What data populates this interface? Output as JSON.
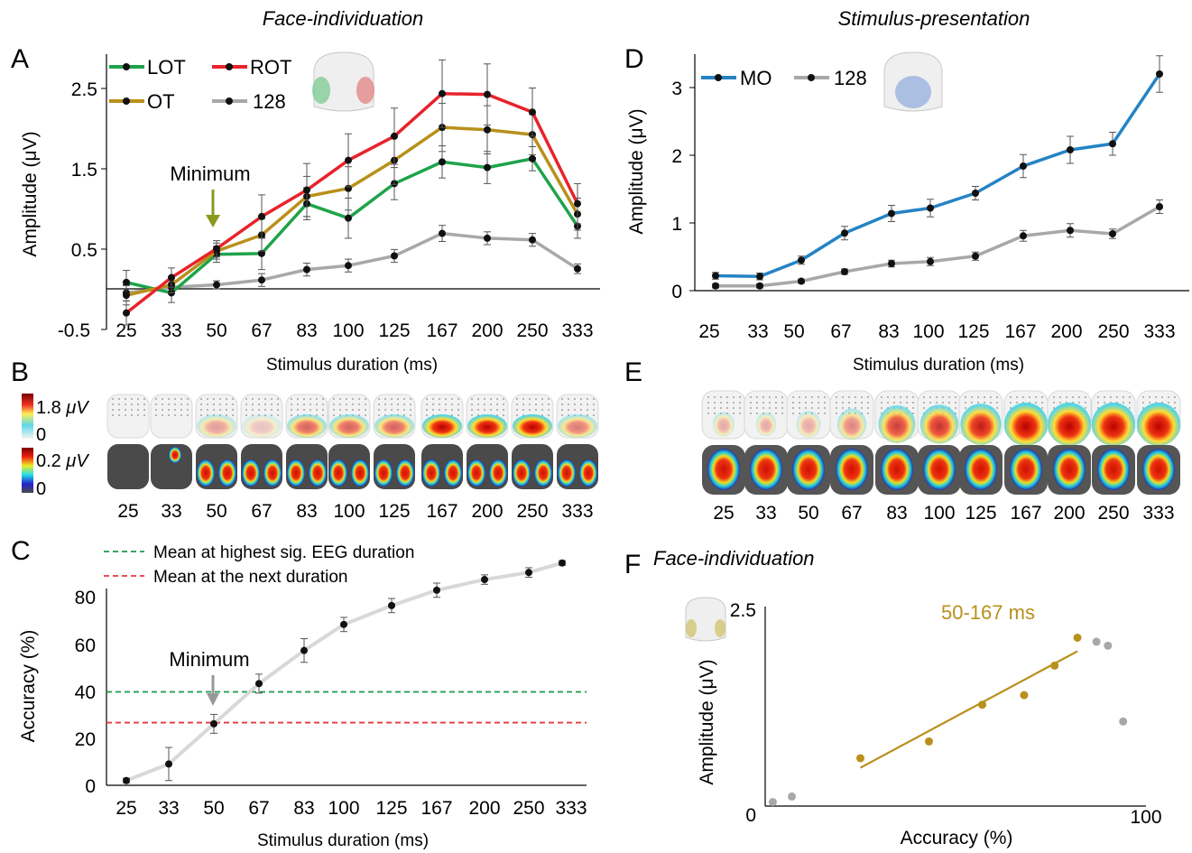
{
  "headings": {
    "left": "Face-individuation",
    "right": "Stimulus-presentation",
    "f_title": "Face-individuation"
  },
  "panel_letters": [
    "A",
    "B",
    "C",
    "D",
    "E",
    "F"
  ],
  "duration_labels": [
    "25",
    "33",
    "50",
    "67",
    "83",
    "100",
    "125",
    "167",
    "200",
    "250",
    "333"
  ],
  "colors": {
    "LOT": "#1fa34a",
    "ROT": "#e8232a",
    "OT": "#b8901b",
    "128": "#a8a8a8",
    "MO": "#2583c4",
    "green_line": "#1a9a4a",
    "red_line": "#e8383e",
    "accuracy_line": "#d8d8d8",
    "regression": "#b8901b",
    "f_gray": "#a8a8a8"
  },
  "colorbars": {
    "top": {
      "max": "1.8",
      "unit": "μV",
      "min": "0"
    },
    "bottom": {
      "max": "0.2",
      "unit": "μV",
      "min": "0"
    }
  },
  "chart_data": [
    {
      "panel": "A",
      "type": "line",
      "xlabel": "Stimulus duration (ms)",
      "ylabel": "Amplitude (μV)",
      "categories": [
        "25",
        "33",
        "50",
        "67",
        "83",
        "100",
        "125",
        "167",
        "200",
        "250",
        "333"
      ],
      "yticks": [
        "2.5",
        "1.5",
        "0.5",
        "-0.5"
      ],
      "ylim": [
        -0.5,
        2.8
      ],
      "annotation": "Minimum",
      "annotation_at": "50",
      "series": [
        {
          "name": "LOT",
          "values": [
            0.08,
            -0.05,
            0.43,
            0.44,
            1.06,
            0.88,
            1.31,
            1.58,
            1.51,
            1.62,
            0.78
          ],
          "errors": [
            0.15,
            0.12,
            0.1,
            0.2,
            0.2,
            0.25,
            0.2,
            0.2,
            0.2,
            0.15,
            0.15
          ]
        },
        {
          "name": "ROT",
          "values": [
            -0.3,
            0.14,
            0.5,
            0.9,
            1.23,
            1.6,
            1.9,
            2.43,
            2.42,
            2.2,
            1.06
          ],
          "errors": [
            0.15,
            0.12,
            0.1,
            0.27,
            0.33,
            0.33,
            0.35,
            0.42,
            0.38,
            0.3,
            0.25
          ]
        },
        {
          "name": "OT",
          "values": [
            -0.08,
            0.05,
            0.47,
            0.67,
            1.15,
            1.25,
            1.6,
            2.01,
            1.98,
            1.92,
            0.93
          ],
          "errors": [
            0.12,
            0.1,
            0.1,
            0.2,
            0.25,
            0.27,
            0.3,
            0.3,
            0.3,
            0.25,
            0.2
          ]
        },
        {
          "name": "128",
          "values": [
            -0.05,
            0.02,
            0.05,
            0.11,
            0.24,
            0.29,
            0.41,
            0.69,
            0.63,
            0.61,
            0.25
          ],
          "errors": [
            0.1,
            0.08,
            0.05,
            0.08,
            0.08,
            0.08,
            0.08,
            0.1,
            0.08,
            0.08,
            0.06
          ]
        }
      ]
    },
    {
      "panel": "C",
      "type": "line",
      "xlabel": "Stimulus duration (ms)",
      "ylabel": "Accuracy (%)",
      "categories": [
        "25",
        "33",
        "50",
        "67",
        "83",
        "100",
        "125",
        "167",
        "200",
        "250",
        "333"
      ],
      "yticks": [
        "80",
        "60",
        "40",
        "20",
        "0"
      ],
      "ylim": [
        0,
        84
      ],
      "values": [
        2,
        9,
        26,
        43,
        57,
        68,
        76,
        82.5,
        87,
        90,
        94
      ],
      "errors": [
        1,
        7,
        4,
        4,
        5,
        3,
        3,
        3,
        2,
        2,
        1
      ],
      "annotation": "Minimum",
      "annotation_at": "50",
      "reference_lines": [
        {
          "label": "Mean at highest sig. EEG duration",
          "value": 39.5
        },
        {
          "label": "Mean at the next duration",
          "value": 26.5
        }
      ]
    },
    {
      "panel": "D",
      "type": "line",
      "xlabel": "Stimulus duration (ms)",
      "ylabel": "Amplitude (μV)",
      "categories": [
        "25",
        "33",
        "50",
        "67",
        "83",
        "100",
        "125",
        "167",
        "200",
        "250",
        "333"
      ],
      "yticks": [
        "3",
        "2",
        "1",
        "0"
      ],
      "ylim": [
        0,
        3.3
      ],
      "series": [
        {
          "name": "MO",
          "values": [
            0.22,
            0.21,
            0.45,
            0.85,
            1.14,
            1.22,
            1.44,
            1.84,
            2.08,
            2.17,
            3.2
          ],
          "errors": [
            0.05,
            0.05,
            0.06,
            0.1,
            0.12,
            0.13,
            0.1,
            0.17,
            0.2,
            0.17,
            0.27
          ]
        },
        {
          "name": "128",
          "values": [
            0.07,
            0.07,
            0.14,
            0.28,
            0.4,
            0.43,
            0.51,
            0.81,
            0.89,
            0.84,
            1.24
          ],
          "errors": [
            0.03,
            0.03,
            0.03,
            0.04,
            0.05,
            0.06,
            0.06,
            0.08,
            0.1,
            0.07,
            0.1
          ]
        }
      ]
    },
    {
      "panel": "F",
      "type": "scatter",
      "xlabel": "Accuracy (%)",
      "ylabel": "Amplitude (μV)",
      "xlim": [
        0,
        100
      ],
      "ylim": [
        0,
        2.5
      ],
      "xticks": [
        "0",
        "100"
      ],
      "yticks": [
        "2.5"
      ],
      "annotation": "50-167 ms",
      "points": [
        {
          "x": 2,
          "y": 0.05,
          "in_range": false
        },
        {
          "x": 7,
          "y": 0.12,
          "in_range": false
        },
        {
          "x": 25,
          "y": 0.6,
          "in_range": true
        },
        {
          "x": 43,
          "y": 0.81,
          "in_range": true
        },
        {
          "x": 57,
          "y": 1.27,
          "in_range": true
        },
        {
          "x": 68,
          "y": 1.39,
          "in_range": true
        },
        {
          "x": 76,
          "y": 1.76,
          "in_range": true
        },
        {
          "x": 82,
          "y": 2.11,
          "in_range": true
        },
        {
          "x": 87,
          "y": 2.06,
          "in_range": false
        },
        {
          "x": 90,
          "y": 2.01,
          "in_range": false
        },
        {
          "x": 94,
          "y": 1.06,
          "in_range": false
        }
      ],
      "regression": {
        "x0": 25,
        "y0": 0.48,
        "x1": 82,
        "y1": 1.94
      }
    }
  ]
}
